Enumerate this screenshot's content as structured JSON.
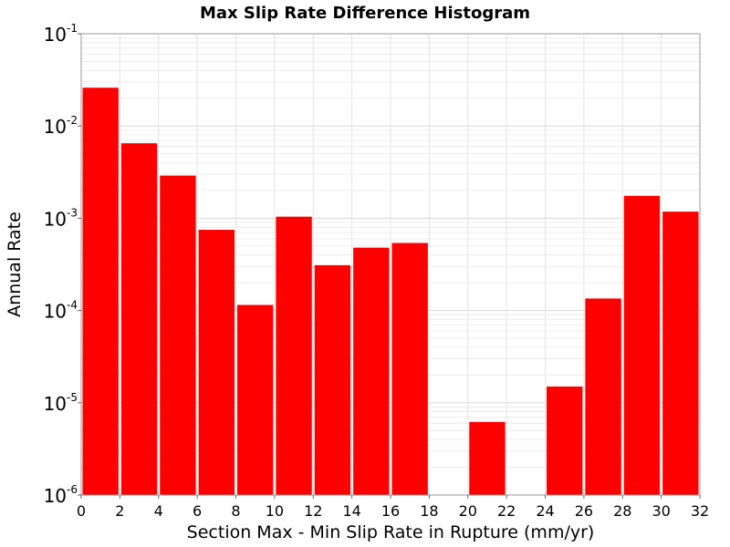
{
  "chart_data": {
    "type": "bar",
    "title": "Max Slip Rate Difference Histogram",
    "xlabel": "Section Max - Min Slip Rate in Rupture (mm/yr)",
    "ylabel": "Annual Rate",
    "y_scale": "log",
    "ylim": [
      1e-06,
      0.1
    ],
    "xlim": [
      0,
      32
    ],
    "x_ticks": [
      "0",
      "2",
      "4",
      "6",
      "8",
      "10",
      "12",
      "14",
      "16",
      "18",
      "20",
      "22",
      "24",
      "26",
      "28",
      "30",
      "32"
    ],
    "y_ticks": [
      {
        "base": "10",
        "exp": "-1"
      },
      {
        "base": "10",
        "exp": "-2"
      },
      {
        "base": "10",
        "exp": "-3"
      },
      {
        "base": "10",
        "exp": "-4"
      },
      {
        "base": "10",
        "exp": "-5"
      },
      {
        "base": "10",
        "exp": "-6"
      }
    ],
    "bin_width": 2,
    "bar_color": "#ff0000",
    "grid": true,
    "bars": [
      {
        "x0": 0,
        "x1": 2,
        "value": 0.026
      },
      {
        "x0": 2,
        "x1": 4,
        "value": 0.0065
      },
      {
        "x0": 4,
        "x1": 6,
        "value": 0.0029
      },
      {
        "x0": 6,
        "x1": 8,
        "value": 0.00075
      },
      {
        "x0": 8,
        "x1": 10,
        "value": 0.000115
      },
      {
        "x0": 10,
        "x1": 12,
        "value": 0.00104
      },
      {
        "x0": 12,
        "x1": 14,
        "value": 0.00031
      },
      {
        "x0": 14,
        "x1": 16,
        "value": 0.00048
      },
      {
        "x0": 16,
        "x1": 18,
        "value": 0.00054
      },
      {
        "x0": 18,
        "x1": 20,
        "value": 0
      },
      {
        "x0": 20,
        "x1": 22,
        "value": 6.2e-06
      },
      {
        "x0": 22,
        "x1": 24,
        "value": 0
      },
      {
        "x0": 24,
        "x1": 26,
        "value": 1.5e-05
      },
      {
        "x0": 26,
        "x1": 28,
        "value": 0.000135
      },
      {
        "x0": 28,
        "x1": 30,
        "value": 0.00175
      },
      {
        "x0": 30,
        "x1": 32,
        "value": 0.00118
      }
    ]
  }
}
